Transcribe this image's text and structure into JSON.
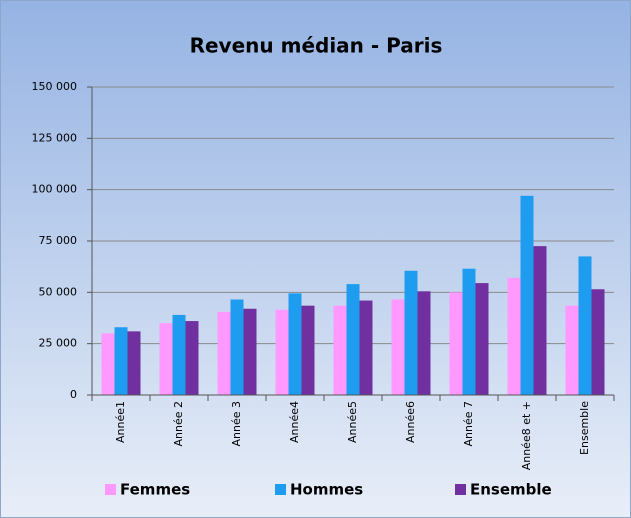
{
  "chart_data": {
    "type": "bar",
    "title": "Revenu médian - Paris",
    "categories": [
      "Année1",
      "Année 2",
      "Année 3",
      "Année4",
      "Année5",
      "Année6",
      "Année 7",
      "Année8 et +",
      "Ensemble"
    ],
    "series": [
      {
        "name": "Femmes",
        "color": "#ff99ff",
        "values": [
          30000,
          35000,
          40500,
          41500,
          43500,
          46500,
          50000,
          57000,
          43500
        ]
      },
      {
        "name": "Hommes",
        "color": "#1e9cf0",
        "values": [
          33000,
          39000,
          46500,
          49500,
          54000,
          60500,
          61500,
          97000,
          67500
        ]
      },
      {
        "name": "Ensemble",
        "color": "#7030a0",
        "values": [
          31000,
          36000,
          42000,
          43500,
          46000,
          50500,
          54500,
          72500,
          51500
        ]
      }
    ],
    "ylim": [
      0,
      150000
    ],
    "yticks": [
      0,
      {
        "value": 25000,
        "label": "25 000"
      },
      {
        "value": 50000,
        "label": "50 000"
      },
      {
        "value": 75000,
        "label": "75 000"
      },
      {
        "value": 100000,
        "label": "100 000"
      },
      {
        "value": 125000,
        "label": "125 000"
      },
      {
        "value": 150000,
        "label": "150 000"
      }
    ],
    "grid": true,
    "legend": "bottom"
  }
}
